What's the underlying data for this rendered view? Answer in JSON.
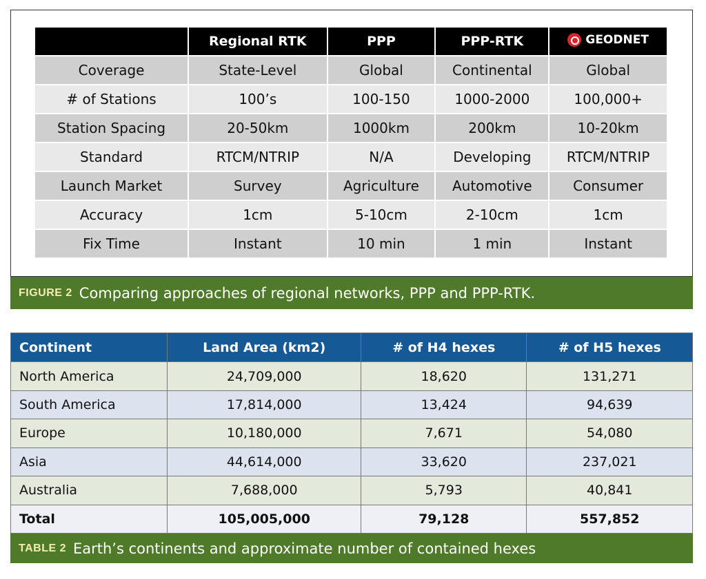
{
  "figure": {
    "headers": [
      "",
      "Regional RTK",
      "PPP",
      "PPP-RTK",
      "GEODNET"
    ],
    "rows": [
      [
        "Coverage",
        "State-Level",
        "Global",
        "Continental",
        "Global"
      ],
      [
        "# of Stations",
        "100’s",
        "100-150",
        "1000-2000",
        "100,000+"
      ],
      [
        "Station Spacing",
        "20-50km",
        "1000km",
        "200km",
        "10-20km"
      ],
      [
        "Standard",
        "RTCM/NTRIP",
        "N/A",
        "Developing",
        "RTCM/NTRIP"
      ],
      [
        "Launch Market",
        "Survey",
        "Agriculture",
        "Automotive",
        "Consumer"
      ],
      [
        "Accuracy",
        "1cm",
        "5-10cm",
        "2-10cm",
        "1cm"
      ],
      [
        "Fix Time",
        "Instant",
        "10 min",
        "1 min",
        "Instant"
      ]
    ],
    "caption_label": "FIGURE 2",
    "caption": "Comparing approaches of regional networks, PPP and PPP-RTK."
  },
  "table": {
    "headers": [
      "Continent",
      "Land Area (km2)",
      "# of H4 hexes",
      "# of H5 hexes"
    ],
    "rows": [
      [
        "North America",
        "24,709,000",
        "18,620",
        "131,271"
      ],
      [
        "South America",
        "17,814,000",
        "13,424",
        "94,639"
      ],
      [
        "Europe",
        "10,180,000",
        "7,671",
        "54,080"
      ],
      [
        "Asia",
        "44,614,000",
        "33,620",
        "237,021"
      ],
      [
        "Australia",
        "7,688,000",
        "5,793",
        "40,841"
      ],
      [
        "Total",
        "105,005,000",
        "79,128",
        "557,852"
      ]
    ],
    "caption_label": "TABLE 2",
    "caption": "Earth’s continents and approximate number of contained hexes"
  },
  "colors": {
    "caption_bg": "#4f7a2a",
    "table_header": "#155a96",
    "logo_red": "#d9262b"
  }
}
